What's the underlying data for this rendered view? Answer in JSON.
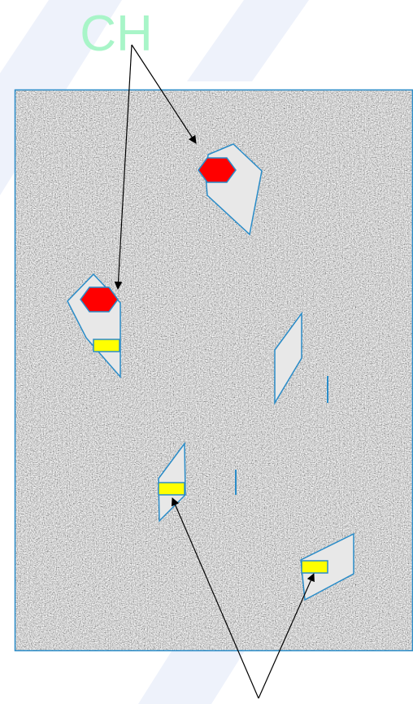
{
  "label": "CH"
}
